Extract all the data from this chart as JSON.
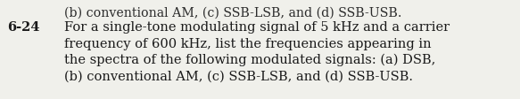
{
  "problem_number": "6-24",
  "top_partial_line": "(b) conventional AM, (c) SSB-LSB, and (d) SSB-USB.",
  "text_lines": [
    "For a single-tone modulating signal of 5 kHz and a carrier",
    "frequency of 600 kHz, list the frequencies appearing in",
    "the spectra of the following modulated signals: (a) DSB,",
    "(b) conventional AM, (c) SSB-LSB, and (d) SSB-USB."
  ],
  "label_color": "#1a1a1a",
  "text_color": "#1a1a1a",
  "top_text_color": "#2a2a2a",
  "background_color": "#f0f0eb",
  "label_fontsize": 10.5,
  "text_fontsize": 10.5,
  "fig_width": 5.83,
  "fig_height": 1.12,
  "dpi": 100
}
